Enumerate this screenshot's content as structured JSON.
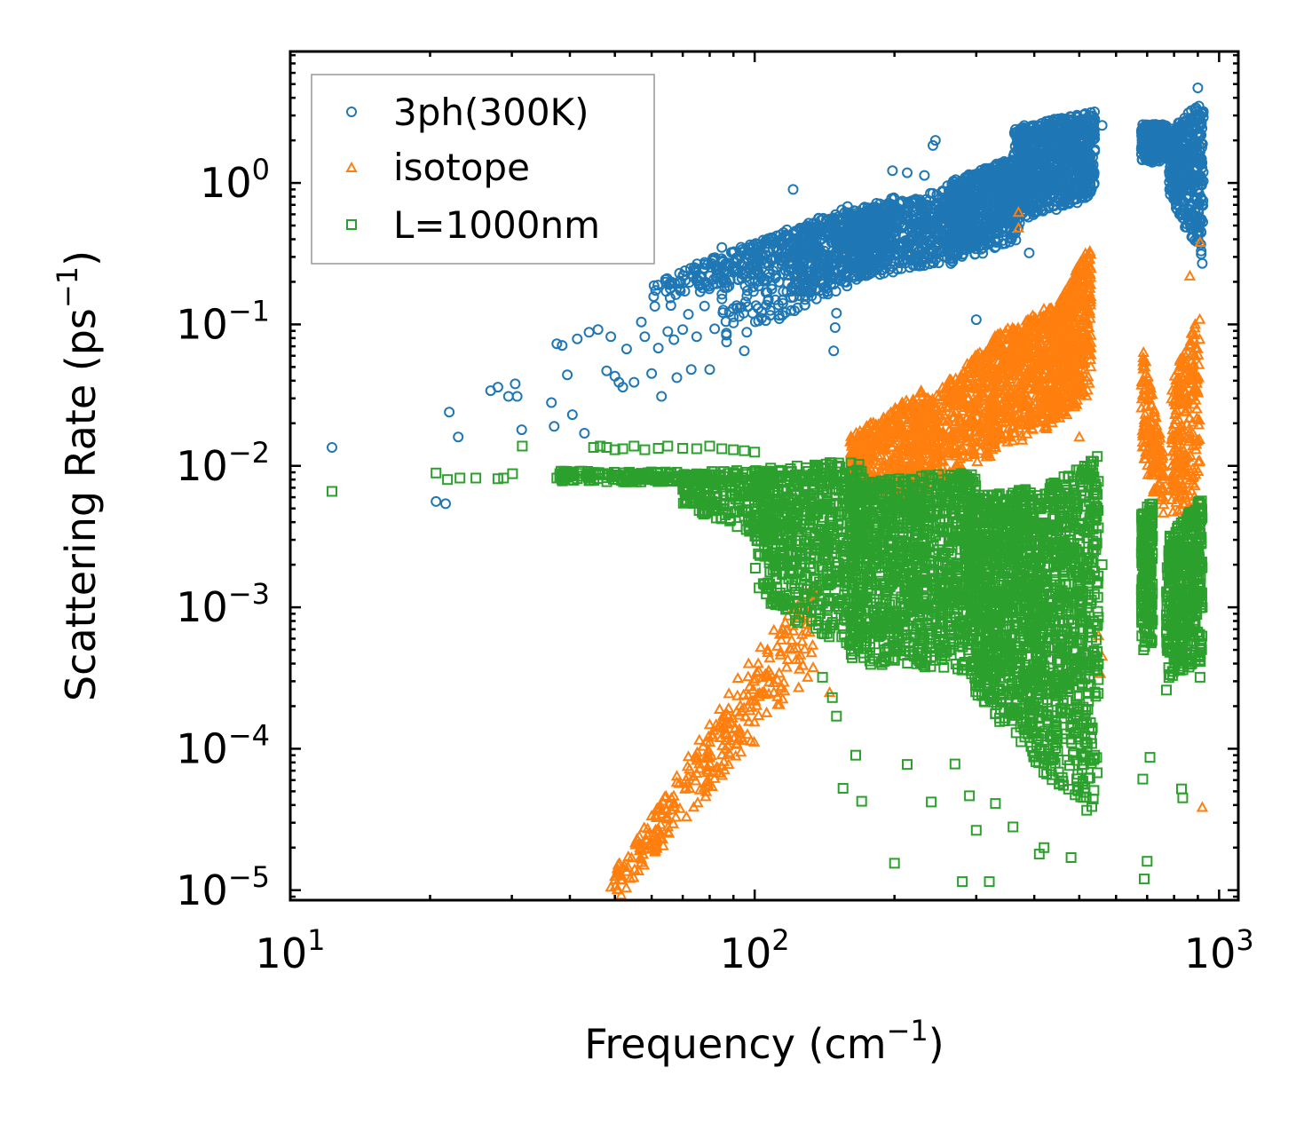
{
  "chart_data": {
    "type": "scatter",
    "xscale": "log",
    "yscale": "log",
    "xlim": [
      10,
      1100
    ],
    "ylim": [
      8.5e-06,
      8.5
    ],
    "xlabel": "Frequency (cm",
    "xlabel_sup": "−1",
    "xlabel_end": ")",
    "ylabel": "Scattering Rate (ps",
    "ylabel_sup": "−1",
    "ylabel_end": ")",
    "x_ticks": [
      {
        "value": 10,
        "base": "10",
        "exp": "1"
      },
      {
        "value": 100,
        "base": "10",
        "exp": "2"
      },
      {
        "value": 1000,
        "base": "10",
        "exp": "3"
      }
    ],
    "y_ticks": [
      {
        "value": 1e-05,
        "base": "10",
        "exp": "−5"
      },
      {
        "value": 0.0001,
        "base": "10",
        "exp": "−4"
      },
      {
        "value": 0.001,
        "base": "10",
        "exp": "−3"
      },
      {
        "value": 0.01,
        "base": "10",
        "exp": "−2"
      },
      {
        "value": 0.1,
        "base": "10",
        "exp": "−1"
      },
      {
        "value": 1,
        "base": "10",
        "exp": "0"
      }
    ],
    "legend_position": "top-left",
    "series": [
      {
        "name": "3ph(300K)",
        "marker": "circle",
        "color": "#1f77b4",
        "points": [
          [
            12.3,
            0.0135
          ],
          [
            20.6,
            0.0056
          ],
          [
            21.6,
            0.0054
          ],
          [
            22.0,
            0.024
          ],
          [
            23.0,
            0.016
          ],
          [
            27.0,
            0.034
          ],
          [
            28.0,
            0.036
          ],
          [
            29.5,
            0.031
          ],
          [
            30.5,
            0.038
          ],
          [
            31.5,
            0.018
          ],
          [
            30.8,
            0.031
          ],
          [
            36.5,
            0.028
          ],
          [
            37.0,
            0.019
          ],
          [
            37.5,
            0.073
          ],
          [
            38.5,
            0.071
          ],
          [
            39.5,
            0.044
          ],
          [
            40.5,
            0.023
          ],
          [
            41.5,
            0.079
          ],
          [
            43.0,
            0.017
          ],
          [
            44.0,
            0.088
          ],
          [
            46.0,
            0.092
          ],
          [
            48.0,
            0.047
          ],
          [
            49.0,
            0.082
          ],
          [
            50.0,
            0.043
          ],
          [
            51.0,
            0.039
          ],
          [
            52.0,
            0.036
          ],
          [
            53.0,
            0.067
          ],
          [
            55.0,
            0.039
          ],
          [
            57.0,
            0.104
          ],
          [
            58.0,
            0.082
          ],
          [
            60.0,
            0.045
          ],
          [
            62.0,
            0.068
          ],
          [
            63.0,
            0.031
          ],
          [
            65.0,
            0.089
          ],
          [
            66.0,
            0.136
          ],
          [
            67.0,
            0.078
          ],
          [
            68.0,
            0.042
          ],
          [
            70.0,
            0.092
          ],
          [
            72.0,
            0.118
          ],
          [
            73.0,
            0.048
          ],
          [
            75.0,
            0.082
          ],
          [
            78.0,
            0.135
          ],
          [
            80.0,
            0.048
          ],
          [
            82.0,
            0.093
          ],
          [
            85.0,
            0.35
          ],
          [
            87.0,
            0.075
          ],
          [
            90.0,
            0.13
          ],
          [
            95.0,
            0.065
          ],
          [
            99.0,
            0.12
          ],
          [
            121.0,
            0.9
          ],
          [
            198.0,
            1.22
          ],
          [
            213.0,
            1.18
          ],
          [
            232.0,
            1.13
          ],
          [
            242.0,
            1.84
          ],
          [
            245.0,
            2.0
          ],
          [
            150.0,
            0.12
          ],
          [
            149.0,
            0.095
          ],
          [
            148.0,
            0.065
          ],
          [
            300.0,
            0.108
          ],
          [
            390.0,
            0.32
          ],
          [
            395.0,
            1.06
          ],
          [
            560.0,
            2.55
          ],
          [
            900.0,
            4.7
          ],
          [
            905.0,
            2.6
          ],
          [
            910.0,
            1.5
          ],
          [
            915.0,
            0.33
          ],
          [
            920.0,
            0.27
          ]
        ],
        "bands": [
          {
            "x": [
              60,
              130
            ],
            "ylow": [
              0.13,
              0.3
            ],
            "yhigh": [
              0.2,
              0.55
            ],
            "n": 180
          },
          {
            "x": [
              85,
              160
            ],
            "ylow": [
              0.07,
              0.18
            ],
            "yhigh": [
              0.3,
              0.7
            ],
            "n": 280
          },
          {
            "x": [
              120,
              200
            ],
            "ylow": [
              0.15,
              0.25
            ],
            "yhigh": [
              0.45,
              0.8
            ],
            "n": 420
          },
          {
            "x": [
              160,
              290
            ],
            "ylow": [
              0.2,
              0.3
            ],
            "yhigh": [
              0.6,
              1.0
            ],
            "n": 650
          },
          {
            "x": [
              260,
              370
            ],
            "ylow": [
              0.25,
              0.4
            ],
            "yhigh": [
              1.0,
              1.6
            ],
            "n": 650
          },
          {
            "x": [
              360,
              540
            ],
            "ylow": [
              0.5,
              0.8
            ],
            "yhigh": [
              2.5,
              3.2
            ],
            "n": 900
          },
          {
            "x": [
              680,
              770
            ],
            "ylow": [
              1.4,
              1.4
            ],
            "yhigh": [
              2.6,
              2.6
            ],
            "n": 220
          },
          {
            "x": [
              780,
              925
            ],
            "ylow": [
              0.8,
              0.28
            ],
            "yhigh": [
              2.3,
              4.0
            ],
            "n": 420
          }
        ]
      },
      {
        "name": "isotope",
        "marker": "triangle",
        "color": "#ff7f0e",
        "points": [
          [
            49.0,
            1.05e-05
          ],
          [
            50.0,
            1.25e-05
          ],
          [
            52.0,
            1.45e-05
          ],
          [
            56.0,
            2.25e-05
          ],
          [
            60.0,
            3.35e-05
          ],
          [
            64.0,
            4.55e-05
          ],
          [
            68.0,
            6.4e-05
          ],
          [
            72.0,
            8.8e-05
          ],
          [
            76.0,
            0.000115
          ],
          [
            80.0,
            0.000148
          ],
          [
            84.0,
            0.00019
          ],
          [
            88.0,
            0.000245
          ],
          [
            92.0,
            0.000315
          ],
          [
            97.0,
            0.0004
          ],
          [
            103.0,
            0.00052
          ],
          [
            110.0,
            0.00069
          ],
          [
            118.0,
            0.00087
          ],
          [
            125.0,
            0.00043
          ],
          [
            130.0,
            0.00032
          ],
          [
            145.0,
            0.00025
          ],
          [
            370.0,
            0.62
          ],
          [
            370.0,
            0.48
          ],
          [
            865.0,
            0.22
          ],
          [
            910.0,
            0.38
          ],
          [
            920.0,
            3.85e-05
          ],
          [
            550.0,
            0.00063
          ],
          [
            560.0,
            0.00045
          ],
          [
            555.0,
            0.00034
          ],
          [
            500.0,
            0.016
          ],
          [
            470.0,
            0.023
          ]
        ],
        "bands": [
          {
            "x": [
              50,
              135
            ],
            "ylow": [
              8e-06,
              0.00035
            ],
            "yhigh": [
              1.4e-05,
              0.0016
            ],
            "n": 320
          },
          {
            "x": [
              160,
              230
            ],
            "ylow": [
              0.006,
              0.006
            ],
            "yhigh": [
              0.016,
              0.035
            ],
            "n": 400
          },
          {
            "x": [
              220,
              330
            ],
            "ylow": [
              0.006,
              0.012
            ],
            "yhigh": [
              0.025,
              0.08
            ],
            "n": 500
          },
          {
            "x": [
              320,
              440
            ],
            "ylow": [
              0.012,
              0.018
            ],
            "yhigh": [
              0.08,
              0.14
            ],
            "n": 560
          },
          {
            "x": [
              440,
              530
            ],
            "ylow": [
              0.02,
              0.03
            ],
            "yhigh": [
              0.12,
              0.4
            ],
            "n": 500
          },
          {
            "x": [
              680,
              760
            ],
            "ylow": [
              0.01,
              0.004
            ],
            "yhigh": [
              0.08,
              0.012
            ],
            "n": 150
          },
          {
            "x": [
              790,
              910
            ],
            "ylow": [
              0.004,
              0.004
            ],
            "yhigh": [
              0.04,
              0.13
            ],
            "n": 240
          }
        ]
      },
      {
        "name": "L=1000nm",
        "marker": "square",
        "color": "#2ca02c",
        "points": [
          [
            12.3,
            0.0066
          ],
          [
            20.6,
            0.0089
          ],
          [
            21.8,
            0.008
          ],
          [
            23.2,
            0.0082
          ],
          [
            25.1,
            0.0082
          ],
          [
            28.0,
            0.0081
          ],
          [
            28.8,
            0.0082
          ],
          [
            30.1,
            0.0088
          ],
          [
            31.6,
            0.0138
          ],
          [
            37.5,
            0.0082
          ],
          [
            38.5,
            0.0088
          ],
          [
            45.0,
            0.0135
          ],
          [
            46.5,
            0.0138
          ],
          [
            48.0,
            0.0135
          ],
          [
            50.0,
            0.013
          ],
          [
            52.0,
            0.0132
          ],
          [
            55.0,
            0.0138
          ],
          [
            58.0,
            0.013
          ],
          [
            62.0,
            0.0133
          ],
          [
            65.0,
            0.0138
          ],
          [
            70.0,
            0.0133
          ],
          [
            75.0,
            0.0132
          ],
          [
            80.0,
            0.0138
          ],
          [
            85.0,
            0.0132
          ],
          [
            90.0,
            0.013
          ],
          [
            95.0,
            0.0128
          ],
          [
            100.0,
            0.0125
          ],
          [
            106.0,
            0.00135
          ],
          [
            125.0,
            0.00098
          ],
          [
            140.0,
            0.00032
          ],
          [
            147.0,
            0.00023
          ],
          [
            150.0,
            0.00017
          ],
          [
            155.0,
            5.25e-05
          ],
          [
            165.0,
            9e-05
          ],
          [
            170.0,
            4.25e-05
          ],
          [
            200.0,
            1.55e-05
          ],
          [
            213.0,
            7.75e-05
          ],
          [
            240.0,
            4.2e-05
          ],
          [
            270.0,
            7.8e-05
          ],
          [
            280.0,
            1.15e-05
          ],
          [
            290.0,
            4.65e-05
          ],
          [
            300.0,
            2.65e-05
          ],
          [
            320.0,
            1.15e-05
          ],
          [
            330.0,
            4.1e-05
          ],
          [
            360.0,
            2.8e-05
          ],
          [
            410.0,
            1.8e-05
          ],
          [
            420.0,
            2e-05
          ],
          [
            480.0,
            1.7e-05
          ],
          [
            690.0,
            1.2e-05
          ],
          [
            700.0,
            1.6e-05
          ],
          [
            685.0,
            6.1e-05
          ],
          [
            710.0,
            8.7e-05
          ],
          [
            770.0,
            0.00026
          ],
          [
            830.0,
            5.2e-05
          ],
          [
            835.0,
            4.5e-05
          ],
          [
            560.0,
            0.002
          ],
          [
            900.0,
            0.0013
          ],
          [
            910.0,
            0.00032
          ],
          [
            920.0,
            0.001
          ]
        ],
        "bands": [
          {
            "x": [
              38,
              80
            ],
            "ylow": [
              0.0078,
              0.0075
            ],
            "yhigh": [
              0.0092,
              0.009
            ],
            "n": 160
          },
          {
            "x": [
              70,
              110
            ],
            "ylow": [
              0.005,
              0.003
            ],
            "yhigh": [
              0.009,
              0.0095
            ],
            "n": 220
          },
          {
            "x": [
              100,
              170
            ],
            "ylow": [
              0.0012,
              0.0004
            ],
            "yhigh": [
              0.0095,
              0.011
            ],
            "n": 700
          },
          {
            "x": [
              160,
              300
            ],
            "ylow": [
              0.0004,
              0.00035
            ],
            "yhigh": [
              0.008,
              0.009
            ],
            "n": 1200
          },
          {
            "x": [
              290,
              400
            ],
            "ylow": [
              0.00025,
              9e-05
            ],
            "yhigh": [
              0.006,
              0.007
            ],
            "n": 900
          },
          {
            "x": [
              390,
              550
            ],
            "ylow": [
              8e-05,
              3e-05
            ],
            "yhigh": [
              0.006,
              0.012
            ],
            "n": 900
          },
          {
            "x": [
              680,
              720
            ],
            "ylow": [
              0.0005,
              0.0005
            ],
            "yhigh": [
              0.0045,
              0.006
            ],
            "n": 220
          },
          {
            "x": [
              770,
              920
            ],
            "ylow": [
              0.0003,
              0.0004
            ],
            "yhigh": [
              0.003,
              0.006
            ],
            "n": 450
          }
        ]
      }
    ]
  }
}
